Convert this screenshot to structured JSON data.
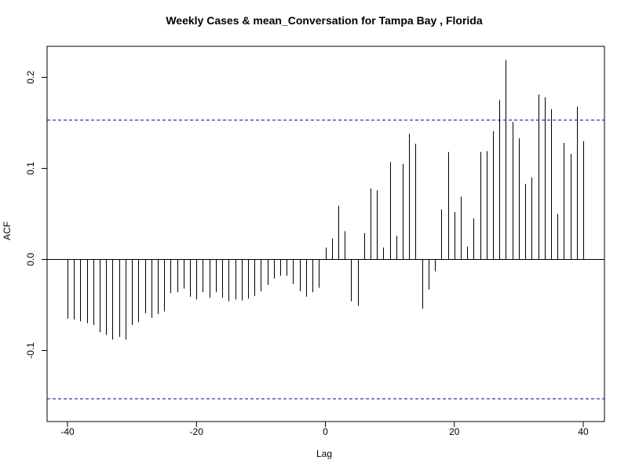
{
  "chart_data": {
    "type": "bar",
    "subtype": "acf-stem",
    "title": "Weekly Cases & mean_Conversation for Tampa Bay , Florida",
    "xlabel": "Lag",
    "ylabel": "ACF",
    "xlim": [
      -40,
      40
    ],
    "ylim": [
      -0.155,
      0.22
    ],
    "x_ticks": [
      -40,
      -20,
      0,
      20,
      40
    ],
    "x_tick_labels": [
      "-40",
      "-20",
      "0",
      "20",
      "40"
    ],
    "y_ticks": [
      -0.1,
      0.0,
      0.1,
      0.2
    ],
    "y_tick_labels": [
      "-0.1",
      "0.0",
      "0.1",
      "0.2"
    ],
    "confidence_bound": 0.153,
    "grid": false,
    "colors": {
      "bars": "#000000",
      "bound": "#00008B",
      "zero_line": "#000000"
    },
    "x": [
      -40,
      -39,
      -38,
      -37,
      -36,
      -35,
      -34,
      -33,
      -32,
      -31,
      -30,
      -29,
      -28,
      -27,
      -26,
      -25,
      -24,
      -23,
      -22,
      -21,
      -20,
      -19,
      -18,
      -17,
      -16,
      -15,
      -14,
      -13,
      -12,
      -11,
      -10,
      -9,
      -8,
      -7,
      -6,
      -5,
      -4,
      -3,
      -2,
      -1,
      0,
      1,
      2,
      3,
      4,
      5,
      6,
      7,
      8,
      9,
      10,
      11,
      12,
      13,
      14,
      15,
      16,
      17,
      18,
      19,
      20,
      21,
      22,
      23,
      24,
      25,
      26,
      27,
      28,
      29,
      30,
      31,
      32,
      33,
      34,
      35,
      36,
      37,
      38,
      39,
      40
    ],
    "values": [
      -0.065,
      -0.066,
      -0.068,
      -0.07,
      -0.072,
      -0.08,
      -0.083,
      -0.088,
      -0.085,
      -0.088,
      -0.072,
      -0.069,
      -0.059,
      -0.064,
      -0.06,
      -0.057,
      -0.037,
      -0.036,
      -0.032,
      -0.041,
      -0.044,
      -0.036,
      -0.042,
      -0.036,
      -0.042,
      -0.046,
      -0.044,
      -0.045,
      -0.043,
      -0.04,
      -0.035,
      -0.028,
      -0.021,
      -0.018,
      -0.018,
      -0.027,
      -0.035,
      -0.041,
      -0.036,
      -0.031,
      0.013,
      0.023,
      0.059,
      0.031,
      -0.046,
      -0.051,
      0.029,
      0.078,
      0.076,
      0.013,
      0.107,
      0.026,
      0.105,
      0.138,
      0.127,
      -0.054,
      -0.033,
      -0.013,
      0.055,
      0.118,
      0.052,
      0.069,
      0.014,
      0.045,
      0.118,
      0.119,
      0.141,
      0.175,
      0.219,
      0.151,
      0.133,
      0.083,
      0.09,
      0.181,
      0.178,
      0.165,
      0.05,
      0.128,
      0.116,
      0.168,
      0.13
    ]
  }
}
